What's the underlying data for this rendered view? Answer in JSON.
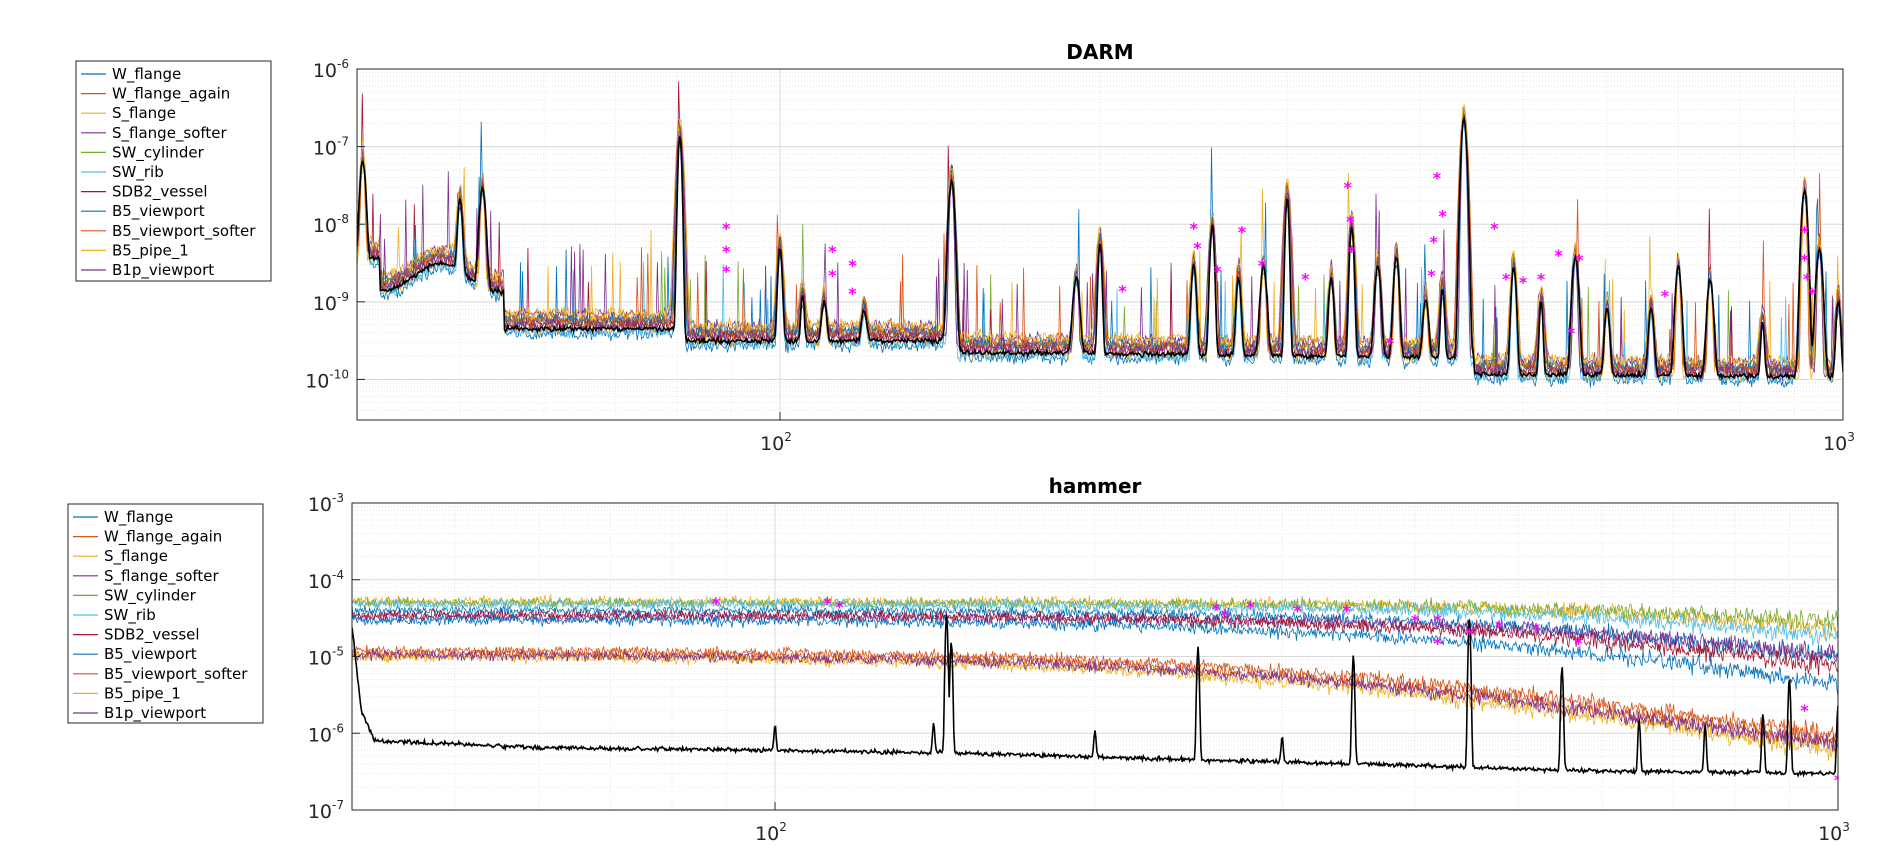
{
  "chart_data": [
    {
      "type": "line",
      "title": "DARM",
      "xlabel": "",
      "ylabel": "",
      "x_scale": "log",
      "y_scale": "log",
      "xlim": [
        40,
        1000
      ],
      "ylim": [
        3e-11,
        1e-06
      ],
      "grid": true,
      "minor_grid": true,
      "legend_placement": "outside-left",
      "x_tick_labels": [
        {
          "base": "10",
          "exp": "2"
        },
        {
          "base": "10",
          "exp": "3"
        }
      ],
      "y_tick_labels": [
        {
          "base": "10",
          "exp": "-10"
        },
        {
          "base": "10",
          "exp": "-9"
        },
        {
          "base": "10",
          "exp": "-8"
        },
        {
          "base": "10",
          "exp": "-7"
        },
        {
          "base": "10",
          "exp": "-6"
        }
      ],
      "series": [
        {
          "name": "W_flange",
          "color": "#0072bd"
        },
        {
          "name": "W_flange_again",
          "color": "#d95319"
        },
        {
          "name": "S_flange",
          "color": "#edb120"
        },
        {
          "name": "S_flange_softer",
          "color": "#7e2f8e"
        },
        {
          "name": "SW_cylinder",
          "color": "#77ac30"
        },
        {
          "name": "SW_rib",
          "color": "#4dbeee"
        },
        {
          "name": "SDB2_vessel",
          "color": "#a2142f"
        },
        {
          "name": "B5_viewport",
          "color": "#0072bd"
        },
        {
          "name": "B5_viewport_softer",
          "color": "#d95319"
        },
        {
          "name": "B5_pipe_1",
          "color": "#edb120"
        },
        {
          "name": "B1p_viewport",
          "color": "#7e2f8e"
        }
      ],
      "reference_series": {
        "color": "#000000",
        "baseline": 2.5e-10
      },
      "marker": {
        "symbol": "*",
        "color": "#ff00ff"
      },
      "peaks": [
        {
          "f": 40.5,
          "a": 7e-08
        },
        {
          "f": 50,
          "a": 2e-08
        },
        {
          "f": 52.5,
          "a": 3e-08
        },
        {
          "f": 80.5,
          "a": 1.5e-07
        },
        {
          "f": 100,
          "a": 5e-09
        },
        {
          "f": 105,
          "a": 1e-09
        },
        {
          "f": 110,
          "a": 8e-10
        },
        {
          "f": 120,
          "a": 5e-10
        },
        {
          "f": 145,
          "a": 4e-08
        },
        {
          "f": 190,
          "a": 2e-09
        },
        {
          "f": 200,
          "a": 6e-09
        },
        {
          "f": 245,
          "a": 3e-09
        },
        {
          "f": 255,
          "a": 1e-08
        },
        {
          "f": 270,
          "a": 2e-09
        },
        {
          "f": 285,
          "a": 3e-09
        },
        {
          "f": 300,
          "a": 2.5e-08
        },
        {
          "f": 330,
          "a": 2e-09
        },
        {
          "f": 345,
          "a": 1e-08
        },
        {
          "f": 365,
          "a": 3e-09
        },
        {
          "f": 380,
          "a": 4e-09
        },
        {
          "f": 405,
          "a": 1e-09
        },
        {
          "f": 420,
          "a": 1.5e-09
        },
        {
          "f": 440,
          "a": 2.5e-07
        },
        {
          "f": 490,
          "a": 3e-09
        },
        {
          "f": 520,
          "a": 1e-09
        },
        {
          "f": 560,
          "a": 4e-09
        },
        {
          "f": 600,
          "a": 8e-10
        },
        {
          "f": 660,
          "a": 8e-10
        },
        {
          "f": 700,
          "a": 3e-09
        },
        {
          "f": 750,
          "a": 2e-09
        },
        {
          "f": 840,
          "a": 5e-10
        },
        {
          "f": 920,
          "a": 3e-08
        },
        {
          "f": 950,
          "a": 5e-09
        },
        {
          "f": 990,
          "a": 1e-09
        }
      ],
      "marker_positions": [
        {
          "f": 89,
          "a": 9e-09
        },
        {
          "f": 89,
          "a": 4.5e-09
        },
        {
          "f": 89,
          "a": 2.5e-09
        },
        {
          "f": 112,
          "a": 4.5e-09
        },
        {
          "f": 117,
          "a": 3e-09
        },
        {
          "f": 112,
          "a": 2.2e-09
        },
        {
          "f": 117,
          "a": 1.3e-09
        },
        {
          "f": 210,
          "a": 1.4e-09
        },
        {
          "f": 245,
          "a": 9e-09
        },
        {
          "f": 247,
          "a": 5e-09
        },
        {
          "f": 258,
          "a": 2.5e-09
        },
        {
          "f": 272,
          "a": 8e-09
        },
        {
          "f": 284,
          "a": 3e-09
        },
        {
          "f": 312,
          "a": 2e-09
        },
        {
          "f": 342,
          "a": 3e-08
        },
        {
          "f": 344,
          "a": 1.1e-08
        },
        {
          "f": 345,
          "a": 4.5e-09
        },
        {
          "f": 415,
          "a": 4e-08
        },
        {
          "f": 420,
          "a": 1.3e-08
        },
        {
          "f": 412,
          "a": 6e-09
        },
        {
          "f": 410,
          "a": 2.2e-09
        },
        {
          "f": 470,
          "a": 9e-09
        },
        {
          "f": 482,
          "a": 2e-09
        },
        {
          "f": 500,
          "a": 1.8e-09
        },
        {
          "f": 520,
          "a": 2e-09
        },
        {
          "f": 540,
          "a": 4e-09
        },
        {
          "f": 565,
          "a": 3.5e-09
        },
        {
          "f": 920,
          "a": 8e-09
        },
        {
          "f": 920,
          "a": 3.5e-09
        },
        {
          "f": 925,
          "a": 2e-09
        },
        {
          "f": 935,
          "a": 1.3e-09
        },
        {
          "f": 680,
          "a": 1.2e-09
        },
        {
          "f": 375,
          "a": 3e-10
        },
        {
          "f": 555,
          "a": 4e-10
        }
      ]
    },
    {
      "type": "line",
      "title": "hammer",
      "xlabel": "",
      "ylabel": "",
      "x_scale": "log",
      "y_scale": "log",
      "xlim": [
        40,
        1000
      ],
      "ylim": [
        1e-07,
        0.001
      ],
      "grid": true,
      "minor_grid": true,
      "legend_placement": "outside-left",
      "x_tick_labels": [
        {
          "base": "10",
          "exp": "2"
        },
        {
          "base": "10",
          "exp": "3"
        }
      ],
      "y_tick_labels": [
        {
          "base": "10",
          "exp": "-7"
        },
        {
          "base": "10",
          "exp": "-6"
        },
        {
          "base": "10",
          "exp": "-5"
        },
        {
          "base": "10",
          "exp": "-4"
        },
        {
          "base": "10",
          "exp": "-3"
        }
      ],
      "series": [
        {
          "name": "W_flange",
          "color": "#0072bd",
          "level": 4e-05,
          "rolloff": 600
        },
        {
          "name": "W_flange_again",
          "color": "#d95319",
          "level": 1.1e-05,
          "rolloff": 300
        },
        {
          "name": "S_flange",
          "color": "#edb120",
          "level": 5.2e-05,
          "rolloff": 900
        },
        {
          "name": "S_flange_softer",
          "color": "#7e2f8e",
          "level": 3.3e-05,
          "rolloff": 700
        },
        {
          "name": "SW_cylinder",
          "color": "#77ac30",
          "level": 5e-05,
          "rolloff": 1100
        },
        {
          "name": "SW_rib",
          "color": "#4dbeee",
          "level": 4.8e-05,
          "rolloff": 800
        },
        {
          "name": "SDB2_vessel",
          "color": "#a2142f",
          "level": 3.5e-05,
          "rolloff": 550
        },
        {
          "name": "B5_viewport",
          "color": "#0072bd",
          "level": 3e-05,
          "rolloff": 450
        },
        {
          "name": "B5_viewport_softer",
          "color": "#d95319",
          "level": 1.2e-05,
          "rolloff": 320
        },
        {
          "name": "B5_pipe_1",
          "color": "#edb120",
          "level": 1e-05,
          "rolloff": 280
        },
        {
          "name": "B1p_viewport",
          "color": "#7e2f8e",
          "level": 1.05e-05,
          "rolloff": 300
        }
      ],
      "reference_series": {
        "color": "#000000",
        "points": [
          [
            40,
            2.5e-05
          ],
          [
            40.8,
            2e-06
          ],
          [
            42,
            8e-07
          ],
          [
            60,
            6.5e-07
          ],
          [
            100,
            6e-07
          ],
          [
            150,
            5.5e-07
          ],
          [
            250,
            4.5e-07
          ],
          [
            400,
            3.8e-07
          ],
          [
            600,
            3.2e-07
          ],
          [
            1000,
            3e-07
          ]
        ],
        "peaks": [
          {
            "f": 141,
            "a": 8e-07
          },
          {
            "f": 145,
            "a": 3.5e-05
          },
          {
            "f": 146.5,
            "a": 1.5e-05
          },
          {
            "f": 250,
            "a": 1.3e-05
          },
          {
            "f": 350,
            "a": 1e-05
          },
          {
            "f": 450,
            "a": 3e-05
          },
          {
            "f": 550,
            "a": 7e-06
          },
          {
            "f": 650,
            "a": 1.2e-06
          },
          {
            "f": 750,
            "a": 1e-06
          },
          {
            "f": 850,
            "a": 1.5e-06
          },
          {
            "f": 900,
            "a": 5e-06
          },
          {
            "f": 1000,
            "a": 2e-06
          },
          {
            "f": 100,
            "a": 7e-07
          },
          {
            "f": 200,
            "a": 6e-07
          },
          {
            "f": 300,
            "a": 5e-07
          }
        ]
      },
      "marker": {
        "symbol": "*",
        "color": "#ff00ff"
      },
      "marker_positions": [
        {
          "f": 88,
          "a": 5e-05
        },
        {
          "f": 112,
          "a": 5e-05
        },
        {
          "f": 115,
          "a": 4.5e-05
        },
        {
          "f": 260,
          "a": 4.2e-05
        },
        {
          "f": 265,
          "a": 3.5e-05
        },
        {
          "f": 280,
          "a": 4.5e-05
        },
        {
          "f": 310,
          "a": 4e-05
        },
        {
          "f": 345,
          "a": 4e-05
        },
        {
          "f": 400,
          "a": 3e-05
        },
        {
          "f": 420,
          "a": 3e-05
        },
        {
          "f": 480,
          "a": 2.5e-05
        },
        {
          "f": 520,
          "a": 2.3e-05
        },
        {
          "f": 570,
          "a": 1.5e-05
        },
        {
          "f": 450,
          "a": 2e-05
        },
        {
          "f": 930,
          "a": 2e-06
        },
        {
          "f": 1000,
          "a": 2.5e-07
        },
        {
          "f": 420,
          "a": 1.5e-05
        }
      ]
    }
  ]
}
